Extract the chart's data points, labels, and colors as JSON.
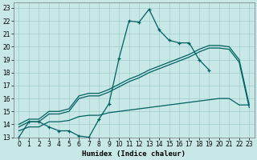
{
  "xlabel": "Humidex (Indice chaleur)",
  "xlim": [
    -0.5,
    23.5
  ],
  "ylim": [
    13,
    23.4
  ],
  "xticks": [
    0,
    1,
    2,
    3,
    4,
    5,
    6,
    7,
    8,
    9,
    10,
    11,
    12,
    13,
    14,
    15,
    16,
    17,
    18,
    19,
    20,
    21,
    22,
    23
  ],
  "yticks": [
    13,
    14,
    15,
    16,
    17,
    18,
    19,
    20,
    21,
    22,
    23
  ],
  "bg_color": "#c8e8e8",
  "line_color": "#006060",
  "grid_color": "#a0cccc",
  "curves": [
    {
      "x": [
        0,
        1,
        2,
        3,
        4,
        5,
        6,
        7,
        8,
        9,
        10,
        11,
        12,
        13,
        14,
        15,
        16,
        17,
        18,
        19
      ],
      "y": [
        13.0,
        14.2,
        14.2,
        13.8,
        13.5,
        13.5,
        13.1,
        13.0,
        14.4,
        15.6,
        19.1,
        22.0,
        21.9,
        22.9,
        21.3,
        20.5,
        20.3,
        20.3,
        19.0,
        18.2
      ],
      "marker": true,
      "lw": 0.9
    },
    {
      "x": [
        0,
        1,
        2,
        3,
        4,
        5,
        6,
        7,
        8,
        9,
        10,
        11,
        12,
        13,
        14,
        15,
        16,
        17,
        18,
        19,
        20,
        21,
        22,
        23
      ],
      "y": [
        14.0,
        14.4,
        14.4,
        15.0,
        15.0,
        15.2,
        16.2,
        16.4,
        16.4,
        16.7,
        17.1,
        17.5,
        17.8,
        18.2,
        18.5,
        18.8,
        19.1,
        19.4,
        19.8,
        20.1,
        20.1,
        20.0,
        19.0,
        15.5
      ],
      "marker": false,
      "lw": 0.9
    },
    {
      "x": [
        0,
        1,
        2,
        3,
        4,
        5,
        6,
        7,
        8,
        9,
        10,
        11,
        12,
        13,
        14,
        15,
        16,
        17,
        18,
        19,
        20,
        21,
        22,
        23
      ],
      "y": [
        13.8,
        14.2,
        14.2,
        14.8,
        14.8,
        15.0,
        16.0,
        16.2,
        16.2,
        16.5,
        16.9,
        17.3,
        17.6,
        18.0,
        18.3,
        18.6,
        18.9,
        19.2,
        19.6,
        19.9,
        19.9,
        19.8,
        18.8,
        15.3
      ],
      "marker": false,
      "lw": 0.9
    },
    {
      "x": [
        0,
        1,
        2,
        3,
        4,
        5,
        6,
        7,
        8,
        9,
        10,
        11,
        12,
        13,
        14,
        15,
        16,
        17,
        18,
        19,
        20,
        21,
        22,
        23
      ],
      "y": [
        13.5,
        13.8,
        13.8,
        14.2,
        14.2,
        14.3,
        14.6,
        14.7,
        14.7,
        14.9,
        15.0,
        15.1,
        15.2,
        15.3,
        15.4,
        15.5,
        15.6,
        15.7,
        15.8,
        15.9,
        16.0,
        16.0,
        15.5,
        15.5
      ],
      "marker": false,
      "lw": 0.9
    }
  ]
}
